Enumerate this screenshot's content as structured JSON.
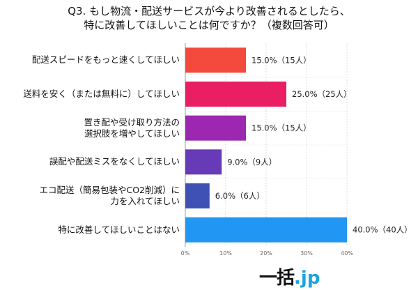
{
  "title_line1": "Q3. もし物流・配送サービスが今より改善されるとしたら、",
  "title_line2": "特に改善してほしいことは何ですか？（複数回答可）",
  "logo": {
    "main": "一括",
    "dot": ".",
    "suffix": "jp"
  },
  "chart_data": {
    "type": "bar",
    "orientation": "horizontal",
    "categories": [
      [
        "配送スピードをもっと速くしてほしい"
      ],
      [
        "送料を安く（または無料に）してほしい"
      ],
      [
        "置き配や受け取り方法の",
        "選択肢を増やしてほしい"
      ],
      [
        "誤配や配送ミスをなくしてほしい"
      ],
      [
        "エコ配送（簡易包装やCO2削減）に",
        "力を入れてほしい"
      ],
      [
        "特に改善してほしいことはない"
      ]
    ],
    "values": [
      15.0,
      25.0,
      15.0,
      9.0,
      6.0,
      40.0
    ],
    "data_labels": [
      "15.0%（15人）",
      "25.0%（25人）",
      "15.0%（15人）",
      "9.0%（9人）",
      "6.0%（6人）",
      "40.0%（40人）"
    ],
    "colors": [
      "#f44a3e",
      "#e91e63",
      "#9c27b0",
      "#673ab7",
      "#3f51b5",
      "#2196f3"
    ],
    "xlim": [
      0,
      40
    ],
    "xticks": [
      0,
      10,
      20,
      30,
      40
    ],
    "xtick_labels": [
      "0%",
      "10%",
      "20%",
      "30%",
      "40%"
    ],
    "grid": true
  }
}
